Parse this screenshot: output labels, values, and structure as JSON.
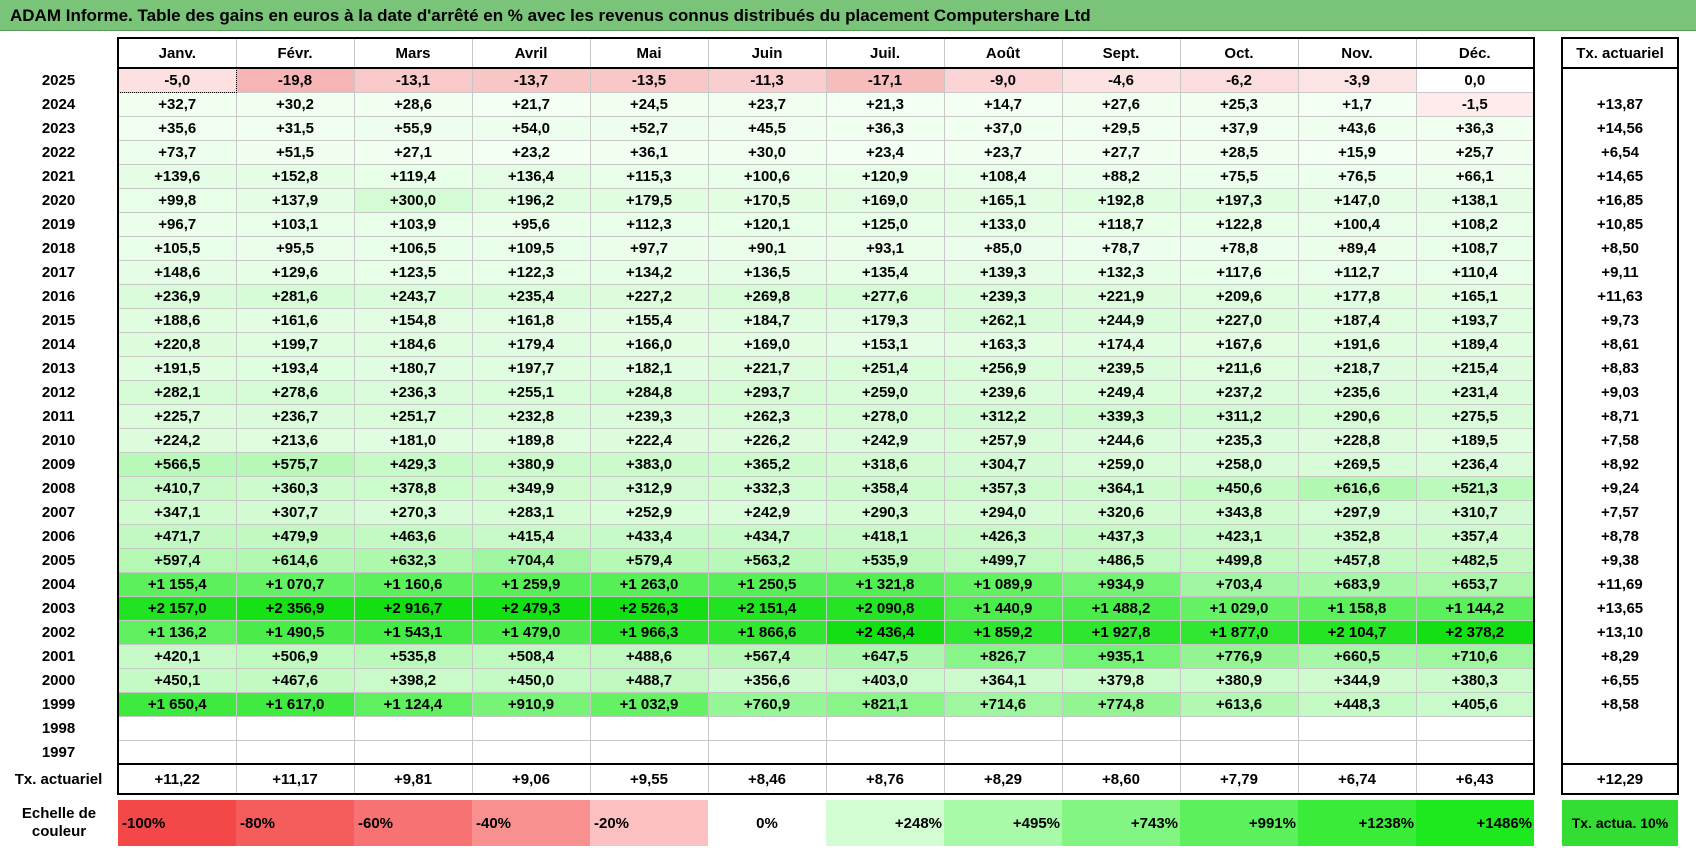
{
  "title": "ADAM Informe. Table des gains en euros à la date d'arrêté en % avec les revenus connus distribués du placement Computershare Ltd",
  "months": [
    "Janv.",
    "Févr.",
    "Mars",
    "Avril",
    "Mai",
    "Juin",
    "Juil.",
    "Août",
    "Sept.",
    "Oct.",
    "Nov.",
    "Déc."
  ],
  "rate_header": "Tx. actuariel",
  "rows": [
    {
      "year": "2025",
      "values": [
        "-5,0",
        "-19,8",
        "-13,1",
        "-13,7",
        "-13,5",
        "-11,3",
        "-17,1",
        "-9,0",
        "-4,6",
        "-6,2",
        "-3,9",
        "0,0"
      ],
      "rate": ""
    },
    {
      "year": "2024",
      "values": [
        "+32,7",
        "+30,2",
        "+28,6",
        "+21,7",
        "+24,5",
        "+23,7",
        "+21,3",
        "+14,7",
        "+27,6",
        "+25,3",
        "+1,7",
        "-1,5"
      ],
      "rate": "+13,87"
    },
    {
      "year": "2023",
      "values": [
        "+35,6",
        "+31,5",
        "+55,9",
        "+54,0",
        "+52,7",
        "+45,5",
        "+36,3",
        "+37,0",
        "+29,5",
        "+37,9",
        "+43,6",
        "+36,3"
      ],
      "rate": "+14,56"
    },
    {
      "year": "2022",
      "values": [
        "+73,7",
        "+51,5",
        "+27,1",
        "+23,2",
        "+36,1",
        "+30,0",
        "+23,4",
        "+23,7",
        "+27,7",
        "+28,5",
        "+15,9",
        "+25,7"
      ],
      "rate": "+6,54"
    },
    {
      "year": "2021",
      "values": [
        "+139,6",
        "+152,8",
        "+119,4",
        "+136,4",
        "+115,3",
        "+100,6",
        "+120,9",
        "+108,4",
        "+88,2",
        "+75,5",
        "+76,5",
        "+66,1"
      ],
      "rate": "+14,65"
    },
    {
      "year": "2020",
      "values": [
        "+99,8",
        "+137,9",
        "+300,0",
        "+196,2",
        "+179,5",
        "+170,5",
        "+169,0",
        "+165,1",
        "+192,8",
        "+197,3",
        "+147,0",
        "+138,1"
      ],
      "rate": "+16,85"
    },
    {
      "year": "2019",
      "values": [
        "+96,7",
        "+103,1",
        "+103,9",
        "+95,6",
        "+112,3",
        "+120,1",
        "+125,0",
        "+133,0",
        "+118,7",
        "+122,8",
        "+100,4",
        "+108,2"
      ],
      "rate": "+10,85"
    },
    {
      "year": "2018",
      "values": [
        "+105,5",
        "+95,5",
        "+106,5",
        "+109,5",
        "+97,7",
        "+90,1",
        "+93,1",
        "+85,0",
        "+78,7",
        "+78,8",
        "+89,4",
        "+108,7"
      ],
      "rate": "+8,50"
    },
    {
      "year": "2017",
      "values": [
        "+148,6",
        "+129,6",
        "+123,5",
        "+122,3",
        "+134,2",
        "+136,5",
        "+135,4",
        "+139,3",
        "+132,3",
        "+117,6",
        "+112,7",
        "+110,4"
      ],
      "rate": "+9,11"
    },
    {
      "year": "2016",
      "values": [
        "+236,9",
        "+281,6",
        "+243,7",
        "+235,4",
        "+227,2",
        "+269,8",
        "+277,6",
        "+239,3",
        "+221,9",
        "+209,6",
        "+177,8",
        "+165,1"
      ],
      "rate": "+11,63"
    },
    {
      "year": "2015",
      "values": [
        "+188,6",
        "+161,6",
        "+154,8",
        "+161,8",
        "+155,4",
        "+184,7",
        "+179,3",
        "+262,1",
        "+244,9",
        "+227,0",
        "+187,4",
        "+193,7"
      ],
      "rate": "+9,73"
    },
    {
      "year": "2014",
      "values": [
        "+220,8",
        "+199,7",
        "+184,6",
        "+179,4",
        "+166,0",
        "+169,0",
        "+153,1",
        "+163,3",
        "+174,4",
        "+167,6",
        "+191,6",
        "+189,4"
      ],
      "rate": "+8,61"
    },
    {
      "year": "2013",
      "values": [
        "+191,5",
        "+193,4",
        "+180,7",
        "+197,7",
        "+182,1",
        "+221,7",
        "+251,4",
        "+256,9",
        "+239,5",
        "+211,6",
        "+218,7",
        "+215,4"
      ],
      "rate": "+8,83"
    },
    {
      "year": "2012",
      "values": [
        "+282,1",
        "+278,6",
        "+236,3",
        "+255,1",
        "+284,8",
        "+293,7",
        "+259,0",
        "+239,6",
        "+249,4",
        "+237,2",
        "+235,6",
        "+231,4"
      ],
      "rate": "+9,03"
    },
    {
      "year": "2011",
      "values": [
        "+225,7",
        "+236,7",
        "+251,7",
        "+232,8",
        "+239,3",
        "+262,3",
        "+278,0",
        "+312,2",
        "+339,3",
        "+311,2",
        "+290,6",
        "+275,5"
      ],
      "rate": "+8,71"
    },
    {
      "year": "2010",
      "values": [
        "+224,2",
        "+213,6",
        "+181,0",
        "+189,8",
        "+222,4",
        "+226,2",
        "+242,9",
        "+257,9",
        "+244,6",
        "+235,3",
        "+228,8",
        "+189,5"
      ],
      "rate": "+7,58"
    },
    {
      "year": "2009",
      "values": [
        "+566,5",
        "+575,7",
        "+429,3",
        "+380,9",
        "+383,0",
        "+365,2",
        "+318,6",
        "+304,7",
        "+259,0",
        "+258,0",
        "+269,5",
        "+236,4"
      ],
      "rate": "+8,92"
    },
    {
      "year": "2008",
      "values": [
        "+410,7",
        "+360,3",
        "+378,8",
        "+349,9",
        "+312,9",
        "+332,3",
        "+358,4",
        "+357,3",
        "+364,1",
        "+450,6",
        "+616,6",
        "+521,3"
      ],
      "rate": "+9,24"
    },
    {
      "year": "2007",
      "values": [
        "+347,1",
        "+307,7",
        "+270,3",
        "+283,1",
        "+252,9",
        "+242,9",
        "+290,3",
        "+294,0",
        "+320,6",
        "+343,8",
        "+297,9",
        "+310,7"
      ],
      "rate": "+7,57"
    },
    {
      "year": "2006",
      "values": [
        "+471,7",
        "+479,9",
        "+463,6",
        "+415,4",
        "+433,4",
        "+434,7",
        "+418,1",
        "+426,3",
        "+437,3",
        "+423,1",
        "+352,8",
        "+357,4"
      ],
      "rate": "+8,78"
    },
    {
      "year": "2005",
      "values": [
        "+597,4",
        "+614,6",
        "+632,3",
        "+704,4",
        "+579,4",
        "+563,2",
        "+535,9",
        "+499,7",
        "+486,5",
        "+499,8",
        "+457,8",
        "+482,5"
      ],
      "rate": "+9,38"
    },
    {
      "year": "2004",
      "values": [
        "+1 155,4",
        "+1 070,7",
        "+1 160,6",
        "+1 259,9",
        "+1 263,0",
        "+1 250,5",
        "+1 321,8",
        "+1 089,9",
        "+934,9",
        "+703,4",
        "+683,9",
        "+653,7"
      ],
      "rate": "+11,69"
    },
    {
      "year": "2003",
      "values": [
        "+2 157,0",
        "+2 356,9",
        "+2 916,7",
        "+2 479,3",
        "+2 526,3",
        "+2 151,4",
        "+2 090,8",
        "+1 440,9",
        "+1 488,2",
        "+1 029,0",
        "+1 158,8",
        "+1 144,2"
      ],
      "rate": "+13,65"
    },
    {
      "year": "2002",
      "values": [
        "+1 136,2",
        "+1 490,5",
        "+1 543,1",
        "+1 479,0",
        "+1 966,3",
        "+1 866,6",
        "+2 436,4",
        "+1 859,2",
        "+1 927,8",
        "+1 877,0",
        "+2 104,7",
        "+2 378,2"
      ],
      "rate": "+13,10"
    },
    {
      "year": "2001",
      "values": [
        "+420,1",
        "+506,9",
        "+535,8",
        "+508,4",
        "+488,6",
        "+567,4",
        "+647,5",
        "+826,7",
        "+935,1",
        "+776,9",
        "+660,5",
        "+710,6"
      ],
      "rate": "+8,29"
    },
    {
      "year": "2000",
      "values": [
        "+450,1",
        "+467,6",
        "+398,2",
        "+450,0",
        "+488,7",
        "+356,6",
        "+403,0",
        "+364,1",
        "+379,8",
        "+380,9",
        "+344,9",
        "+380,3"
      ],
      "rate": "+6,55"
    },
    {
      "year": "1999",
      "values": [
        "+1 650,4",
        "+1 617,0",
        "+1 124,4",
        "+910,9",
        "+1 032,9",
        "+760,9",
        "+821,1",
        "+714,6",
        "+774,8",
        "+613,6",
        "+448,3",
        "+405,6"
      ],
      "rate": "+8,58"
    },
    {
      "year": "1998",
      "values": [
        "",
        "",
        "",
        "",
        "",
        "",
        "",
        "",
        "",
        "",
        "",
        ""
      ],
      "rate": ""
    },
    {
      "year": "1997",
      "values": [
        "",
        "",
        "",
        "",
        "",
        "",
        "",
        "",
        "",
        "",
        "",
        ""
      ],
      "rate": ""
    }
  ],
  "total_row": {
    "label": "Tx. actuariel",
    "values": [
      "+11,22",
      "+11,17",
      "+9,81",
      "+9,06",
      "+9,55",
      "+8,46",
      "+8,76",
      "+8,29",
      "+8,60",
      "+7,79",
      "+6,74",
      "+6,43"
    ],
    "rate": "+12,29"
  },
  "scale": {
    "label": "Echelle de couleur",
    "items": [
      {
        "label": "-100%",
        "color": "#f44848"
      },
      {
        "label": "-80%",
        "color": "#f55c5c"
      },
      {
        "label": "-60%",
        "color": "#f77272"
      },
      {
        "label": "-40%",
        "color": "#f99090"
      },
      {
        "label": "-20%",
        "color": "#fcc0c0"
      },
      {
        "label": "0%",
        "color": "#ffffff"
      },
      {
        "label": "+248%",
        "color": "#d2fdd2"
      },
      {
        "label": "+495%",
        "color": "#a8f9a8"
      },
      {
        "label": "+743%",
        "color": "#82f582"
      },
      {
        "label": "+991%",
        "color": "#5cf05c"
      },
      {
        "label": "+1238%",
        "color": "#3aeb3a"
      },
      {
        "label": "+1486%",
        "color": "#1ee81e"
      }
    ],
    "rate_label": "Tx. actua. 10%",
    "rate_color": "#33dd33"
  },
  "colors": {
    "title_bg": "#7ac47a",
    "highlight_border": "#000000"
  }
}
